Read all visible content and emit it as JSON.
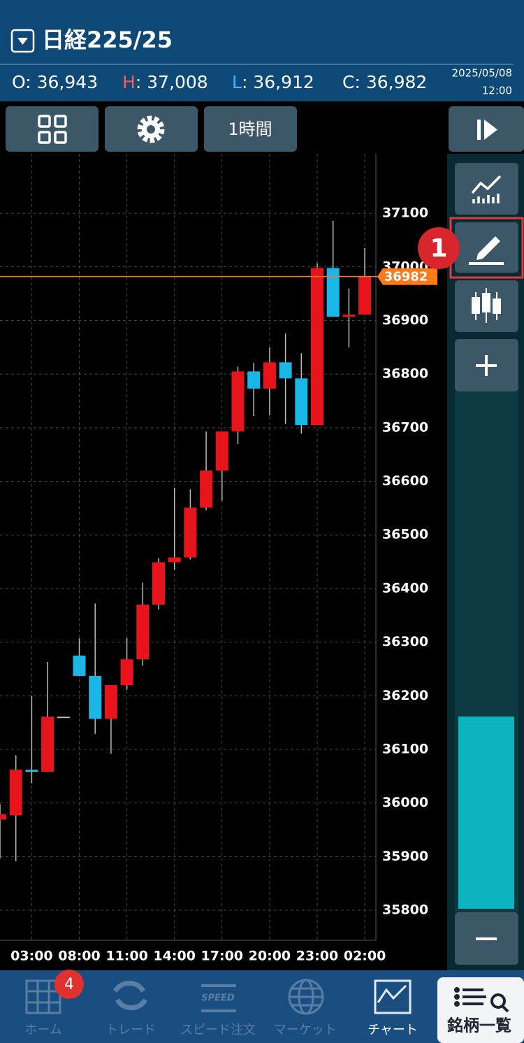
{
  "header": {
    "title": "日経225/25",
    "ohlc": [
      {
        "label": "O",
        "text": ": 36,943"
      },
      {
        "label": "H",
        "text": ": 37,008"
      },
      {
        "label": "L",
        "text": ": 36,912"
      },
      {
        "label": "C",
        "text": ": 36,982"
      }
    ],
    "date": "2025/05/08",
    "time": "12:00"
  },
  "toolbar": {
    "interval": "1時間"
  },
  "annotation": "1",
  "chart_data": {
    "type": "candlestick",
    "categories": [
      null,
      null,
      "03:00",
      null,
      null,
      "08:00",
      null,
      null,
      "11:00",
      null,
      null,
      "14:00",
      null,
      null,
      "17:00",
      null,
      null,
      "20:00",
      null,
      null,
      "23:00",
      null,
      null,
      "02:00"
    ],
    "open": [
      35969,
      35977,
      36062,
      36058,
      36161,
      36275,
      36237,
      36157,
      36220,
      36268,
      36370,
      36449,
      36458,
      36551,
      36620,
      36693,
      36805,
      36773,
      36822,
      36792,
      36705,
      36998,
      36907,
      36911
    ],
    "high": [
      35998,
      36089,
      36200,
      36263,
      36161,
      36307,
      36372,
      36220,
      36308,
      36411,
      36457,
      36588,
      36585,
      36693,
      36693,
      36814,
      36821,
      36850,
      36876,
      36839,
      37007,
      37086,
      36960,
      37035
    ],
    "low": [
      35896,
      35891,
      36037,
      36058,
      36161,
      36237,
      36129,
      36092,
      36211,
      36256,
      36361,
      36435,
      36454,
      36546,
      36564,
      36670,
      36722,
      36723,
      36707,
      36689,
      36705,
      36907,
      36850,
      36911
    ],
    "close": [
      35979,
      36062,
      36058,
      36161,
      36161,
      36237,
      36157,
      36220,
      36268,
      36370,
      36449,
      36458,
      36551,
      36620,
      36693,
      36805,
      36773,
      36822,
      36792,
      36705,
      36998,
      36907,
      36911,
      36982
    ],
    "up_color": "#e8141c",
    "down_color": "#1ab6e6",
    "flat_color": "#bbbbbb",
    "current_price": 36982,
    "current_price_color": "#ff7a1a",
    "ylim": [
      35744,
      37211
    ],
    "yticks": [
      35800,
      35900,
      36000,
      36100,
      36200,
      36300,
      36400,
      36500,
      36600,
      36700,
      36800,
      36900,
      37000,
      37100
    ],
    "grid": true
  },
  "nav": {
    "badge": "4",
    "tabs": [
      "ホーム",
      "トレード",
      "スピード注文",
      "マーケット",
      "チャート"
    ],
    "list_button": "銘柄一覧"
  }
}
